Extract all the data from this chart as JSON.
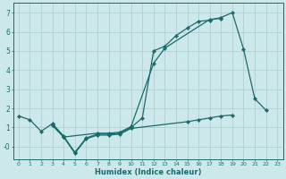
{
  "xlabel": "Humidex (Indice chaleur)",
  "bg_color": "#cce8ea",
  "grid_color": "#b0d0d4",
  "line_color": "#1a6b6b",
  "xlim": [
    -0.5,
    23.5
  ],
  "ylim": [
    -0.65,
    7.5
  ],
  "xticks": [
    0,
    1,
    2,
    3,
    4,
    5,
    6,
    7,
    8,
    9,
    10,
    11,
    12,
    13,
    14,
    15,
    16,
    17,
    18,
    19,
    20,
    21,
    22,
    23
  ],
  "yticks": [
    0,
    1,
    2,
    3,
    4,
    5,
    6,
    7
  ],
  "ytick_labels": [
    "-0",
    "1",
    "2",
    "3",
    "4",
    "5",
    "6",
    "7"
  ],
  "line1_x": [
    0,
    1,
    2,
    3,
    4,
    5,
    6,
    7,
    8,
    9,
    10,
    11,
    12,
    13,
    14,
    15,
    16,
    17,
    18,
    19,
    20,
    21,
    22
  ],
  "line1_y": [
    1.6,
    1.4,
    0.8,
    1.2,
    0.55,
    -0.3,
    0.45,
    0.65,
    0.65,
    0.7,
    1.0,
    1.5,
    5.0,
    5.25,
    5.8,
    6.2,
    6.55,
    6.6,
    6.75,
    7.0,
    5.1,
    2.5,
    1.9
  ],
  "line2_x": [
    3,
    4,
    7,
    8,
    9,
    10,
    12,
    13,
    17,
    18
  ],
  "line2_y": [
    1.15,
    0.5,
    0.7,
    0.7,
    0.75,
    1.05,
    4.35,
    5.15,
    6.65,
    6.7
  ],
  "line3_x": [
    3,
    4,
    5,
    6,
    7,
    8,
    9,
    10,
    15,
    16,
    17,
    18,
    19
  ],
  "line3_y": [
    1.1,
    0.5,
    -0.35,
    0.4,
    0.6,
    0.6,
    0.65,
    0.95,
    1.3,
    1.4,
    1.5,
    1.6,
    1.65
  ]
}
